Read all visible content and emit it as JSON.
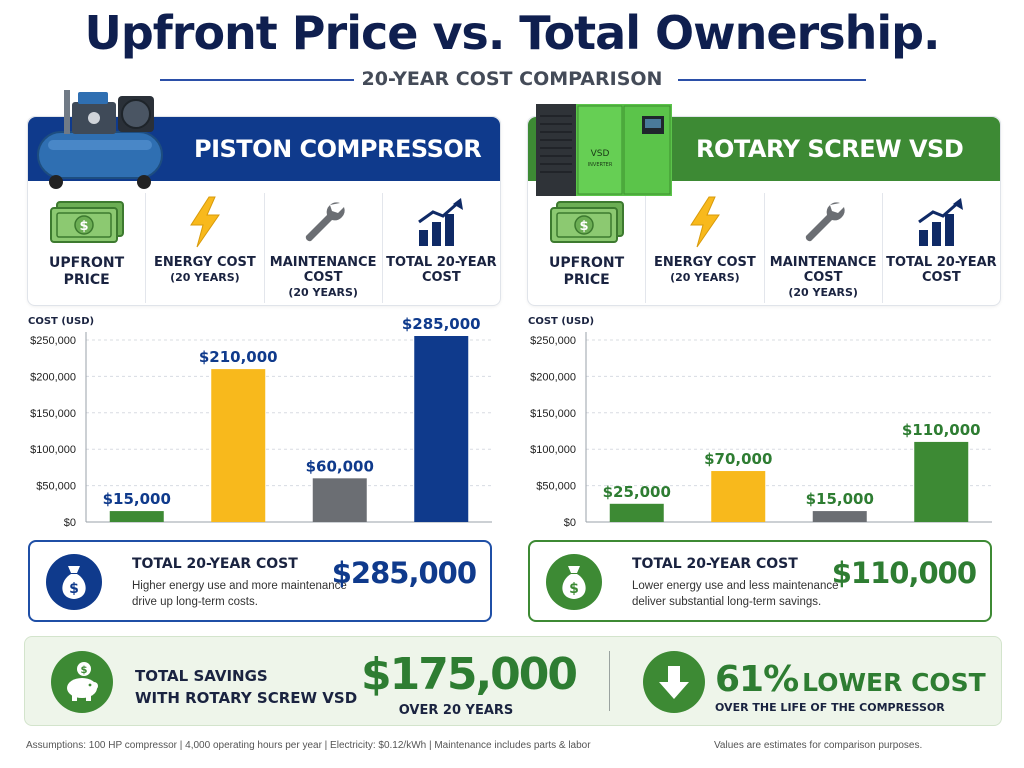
{
  "header": {
    "title": "Upfront Price vs. Total Ownership.",
    "subtitle": "20-YEAR COST COMPARISON"
  },
  "colors": {
    "navy": "#0f3a8c",
    "green": "#3d8a34",
    "yellow": "#f8b91c",
    "gray": "#6b6e73",
    "dark_green": "#2e7d32"
  },
  "left": {
    "title": "PISTON COMPRESSOR",
    "metrics": [
      {
        "icon": "money-icon",
        "label": "UPFRONT PRICE",
        "sub": ""
      },
      {
        "icon": "lightning-icon",
        "label": "ENERGY COST",
        "sub": "(20 YEARS)"
      },
      {
        "icon": "wrench-icon",
        "label": "MAINTENANCE COST",
        "sub": "(20 YEARS)"
      },
      {
        "icon": "bar-chart-icon",
        "label": "TOTAL 20-YEAR COST",
        "sub": ""
      }
    ],
    "total": {
      "title": "TOTAL 20-YEAR COST",
      "amount": "$285,000",
      "description": "Higher energy use and more maintenance drive up long-term costs."
    }
  },
  "right": {
    "title": "ROTARY SCREW VSD",
    "machine_label": "VSD",
    "machine_sublabel": "INVERTER",
    "metrics": [
      {
        "icon": "money-icon",
        "label": "UPFRONT PRICE",
        "sub": ""
      },
      {
        "icon": "lightning-icon",
        "label": "ENERGY COST",
        "sub": "(20 YEARS)"
      },
      {
        "icon": "wrench-icon",
        "label": "MAINTENANCE COST",
        "sub": "(20 YEARS)"
      },
      {
        "icon": "bar-chart-icon",
        "label": "TOTAL 20-YEAR COST",
        "sub": ""
      }
    ],
    "total": {
      "title": "TOTAL 20-YEAR COST",
      "amount": "$110,000",
      "description": "Lower energy use and less maintenance deliver substantial long-term savings."
    }
  },
  "chart_data": [
    {
      "type": "bar",
      "title": "",
      "ylabel": "COST (USD)",
      "ylim": [
        0,
        250000
      ],
      "yticks": [
        0,
        50000,
        100000,
        150000,
        200000,
        250000
      ],
      "ytick_labels": [
        "$0",
        "$50,000",
        "$100,000",
        "$150,000",
        "$200,000",
        "$250,000"
      ],
      "categories": [
        "UPFRONT PRICE",
        "ENERGY COST (20 YEARS)",
        "MAINTENANCE COST (20 YEARS)",
        "TOTAL 20-YEAR COST"
      ],
      "values": [
        15000,
        210000,
        60000,
        285000
      ],
      "value_labels": [
        "$15,000",
        "$210,000",
        "$60,000",
        "$285,000"
      ],
      "bar_colors": [
        "#3d8a34",
        "#f8b91c",
        "#6b6e73",
        "#0f3a8c"
      ],
      "label_colors": [
        "#0f3a8c",
        "#0f3a8c",
        "#0f3a8c",
        "#0f3a8c"
      ],
      "grid": true
    },
    {
      "type": "bar",
      "title": "",
      "ylabel": "COST (USD)",
      "ylim": [
        0,
        250000
      ],
      "yticks": [
        0,
        50000,
        100000,
        150000,
        200000,
        250000
      ],
      "ytick_labels": [
        "$0",
        "$50,000",
        "$100,000",
        "$150,000",
        "$200,000",
        "$250,000"
      ],
      "categories": [
        "UPFRONT PRICE",
        "ENERGY COST (20 YEARS)",
        "MAINTENANCE COST (20 YEARS)",
        "TOTAL 20-YEAR COST"
      ],
      "values": [
        25000,
        70000,
        15000,
        110000
      ],
      "value_labels": [
        "$25,000",
        "$70,000",
        "$15,000",
        "$110,000"
      ],
      "bar_colors": [
        "#3d8a34",
        "#f8b91c",
        "#6b6e73",
        "#3d8a34"
      ],
      "label_colors": [
        "#2e7d32",
        "#2e7d32",
        "#2e7d32",
        "#2e7d32"
      ],
      "grid": true
    }
  ],
  "savings": {
    "label_line1": "TOTAL SAVINGS",
    "label_line2": "WITH ROTARY SCREW VSD",
    "amount": "$175,000",
    "period": "OVER 20 YEARS",
    "percent": "61%",
    "percent_word": "LOWER COST",
    "percent_sub": "OVER THE LIFE OF THE COMPRESSOR"
  },
  "footer": {
    "assumptions": "Assumptions: 100 HP compressor  |  4,000 operating hours per year  |  Electricity: $0.12/kWh  |  Maintenance includes parts & labor",
    "note": "Values are estimates for comparison purposes."
  }
}
